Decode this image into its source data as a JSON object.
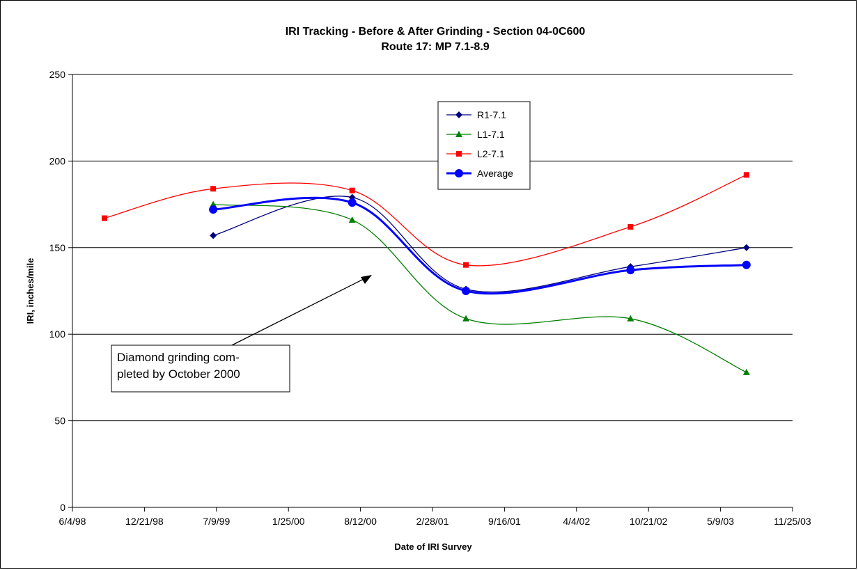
{
  "chart_data": {
    "type": "line",
    "title": "IRI Tracking - Before & After Grinding - Section 04-0C600",
    "subtitle": "Route 17: MP 7.1-8.9",
    "xlabel": "Date of IRI Survey",
    "ylabel": "IRI, inches/mile",
    "x_ticks": [
      "6/4/98",
      "12/21/98",
      "7/9/99",
      "1/25/00",
      "8/12/00",
      "2/28/01",
      "9/16/01",
      "4/4/02",
      "10/21/02",
      "5/9/03",
      "11/25/03"
    ],
    "y_ticks": [
      "0",
      "50",
      "100",
      "150",
      "200",
      "250"
    ],
    "xlim": [
      "1998-06-04",
      "2003-11-25"
    ],
    "ylim": [
      0,
      250
    ],
    "grid": "horizontal major",
    "legend_position": "top-center",
    "series": [
      {
        "name": "R1-7.1",
        "color": "#00007F",
        "marker": "diamond",
        "x": [
          "1999-06-30",
          "2000-07-20",
          "2001-06-01",
          "2002-09-01",
          "2003-07-20"
        ],
        "y": [
          157,
          179,
          126,
          139,
          150
        ]
      },
      {
        "name": "L1-7.1",
        "color": "#008000",
        "marker": "triangle",
        "x": [
          "1999-06-30",
          "2000-07-20",
          "2001-06-01",
          "2002-09-01",
          "2003-07-20"
        ],
        "y": [
          175,
          166,
          109,
          109,
          78
        ]
      },
      {
        "name": "L2-7.1",
        "color": "#FF0000",
        "marker": "square",
        "x": [
          "1998-09-01",
          "1999-06-30",
          "2000-07-20",
          "2001-06-01",
          "2002-09-01",
          "2003-07-20"
        ],
        "y": [
          167,
          184,
          183,
          140,
          162,
          192
        ]
      },
      {
        "name": "Average",
        "color": "#0000FF",
        "marker": "circle",
        "x": [
          "1999-06-30",
          "2000-07-20",
          "2001-06-01",
          "2002-09-01",
          "2003-07-20"
        ],
        "y": [
          172,
          176,
          125,
          137,
          140
        ]
      }
    ],
    "annotation": {
      "lines": [
        "Diamond grinding com-",
        "pleted by October 2000"
      ]
    }
  }
}
